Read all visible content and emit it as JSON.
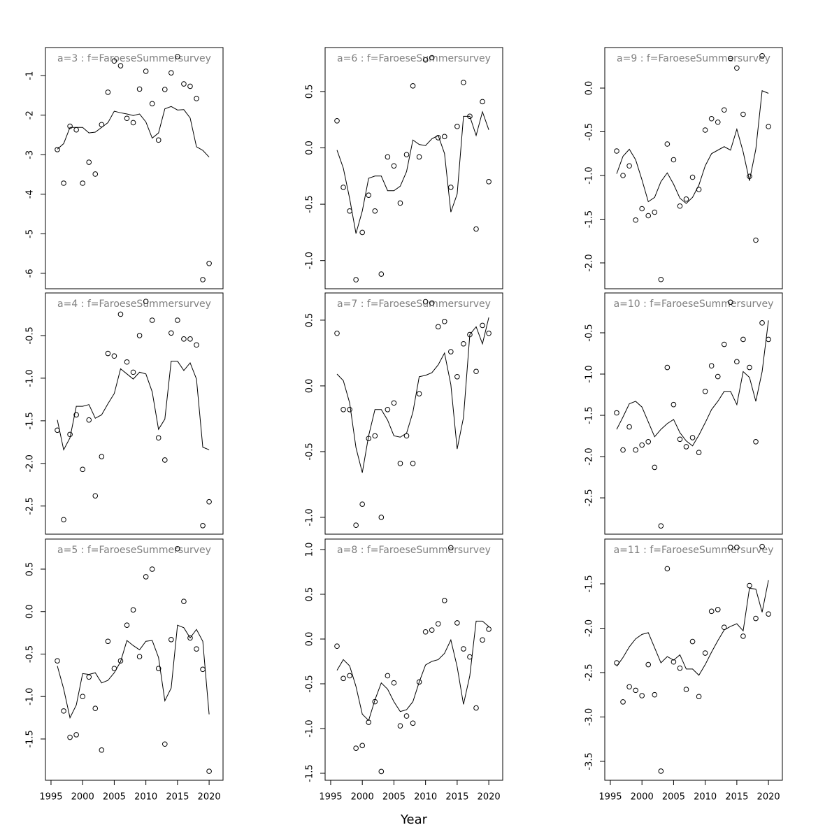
{
  "chart_data": [
    {
      "type": "line",
      "title": "a=3  :  f=FaroeseSummersurvey",
      "x": [
        1996,
        1997,
        1998,
        1999,
        2000,
        2001,
        2002,
        2003,
        2004,
        2005,
        2006,
        2007,
        2008,
        2009,
        2010,
        2011,
        2012,
        2013,
        2014,
        2015,
        2016,
        2017,
        2018,
        2019,
        2020
      ],
      "xlim": [
        1994.12,
        2022.2
      ],
      "ylim": [
        -6.39,
        -0.29
      ],
      "yticks": [
        -6,
        -5,
        -4,
        -3,
        -2,
        -1
      ],
      "series": [
        {
          "style": "points",
          "color": "#000000",
          "values": [
            -2.87,
            -3.72,
            -2.28,
            -2.37,
            -3.72,
            -3.19,
            -3.49,
            -2.24,
            -1.42,
            -0.63,
            -0.75,
            -2.08,
            -2.19,
            -1.34,
            -0.89,
            -1.71,
            -2.63,
            -1.35,
            -0.93,
            -0.52,
            -1.21,
            -1.27,
            -1.58,
            -6.16,
            -5.75
          ]
        },
        {
          "style": "line",
          "color": "#000000",
          "values": [
            -2.86,
            -2.72,
            -2.31,
            -2.31,
            -2.31,
            -2.45,
            -2.43,
            -2.31,
            -2.19,
            -1.9,
            -1.94,
            -1.97,
            -2.01,
            -1.97,
            -2.17,
            -2.58,
            -2.45,
            -1.84,
            -1.78,
            -1.87,
            -1.86,
            -2.07,
            -2.8,
            -2.89,
            -3.06
          ]
        }
      ]
    },
    {
      "type": "line",
      "title": "a=4  :  f=FaroeseSummersurvey",
      "x": [
        1996,
        1997,
        1998,
        1999,
        2000,
        2001,
        2002,
        2003,
        2004,
        2005,
        2006,
        2007,
        2008,
        2009,
        2010,
        2011,
        2012,
        2013,
        2014,
        2015,
        2016,
        2017,
        2018,
        2019,
        2020
      ],
      "xlim": [
        1994.12,
        2022.2
      ],
      "ylim": [
        -2.83,
        0.0
      ],
      "yticks": [
        -2.5,
        {
          "value": -2,
          "label": "-2.0"
        },
        -1.5,
        {
          "value": -1,
          "label": "-1.0"
        },
        -0.5
      ],
      "series": [
        {
          "style": "points",
          "color": "#000000",
          "values": [
            -1.61,
            -2.66,
            -1.66,
            -1.43,
            -2.07,
            -1.49,
            -2.38,
            -1.92,
            -0.71,
            -0.74,
            -0.25,
            -0.81,
            -0.93,
            -0.5,
            -0.1,
            -0.32,
            -1.7,
            -1.96,
            -0.47,
            -0.32,
            -0.54,
            -0.54,
            -0.61,
            -2.73,
            -2.45
          ]
        },
        {
          "style": "line",
          "color": "#000000",
          "values": [
            -1.49,
            -1.84,
            -1.7,
            -1.33,
            -1.33,
            -1.31,
            -1.47,
            -1.43,
            -1.3,
            -1.18,
            -0.89,
            -0.95,
            -1.01,
            -0.93,
            -0.95,
            -1.16,
            -1.6,
            -1.48,
            -0.8,
            -0.8,
            -0.91,
            -0.82,
            -1.01,
            -1.81,
            -1.84
          ]
        }
      ]
    },
    {
      "type": "line",
      "title": "a=5  :  f=FaroeseSummersurvey",
      "x": [
        1996,
        1997,
        1998,
        1999,
        2000,
        2001,
        2002,
        2003,
        2004,
        2005,
        2006,
        2007,
        2008,
        2009,
        2010,
        2011,
        2012,
        2013,
        2014,
        2015,
        2016,
        2017,
        2018,
        2019,
        2020
      ],
      "xlim": [
        1994.12,
        2022.2
      ],
      "ylim": [
        -1.986,
        0.854
      ],
      "yticks": [
        -1.5,
        {
          "value": -1,
          "label": "-1.0"
        },
        -0.5,
        {
          "value": 0,
          "label": "0.0"
        },
        0.5
      ],
      "xticks": [
        1995,
        2000,
        2005,
        2010,
        2015,
        2020
      ],
      "series": [
        {
          "style": "points",
          "color": "#000000",
          "values": [
            -0.58,
            -1.17,
            -1.48,
            -1.45,
            -1.0,
            -0.77,
            -1.14,
            -1.63,
            -0.35,
            -0.67,
            -0.58,
            -0.16,
            0.02,
            -0.53,
            0.41,
            0.5,
            -0.67,
            -1.56,
            -0.33,
            0.74,
            0.12,
            -0.31,
            -0.44,
            -0.68,
            -1.88
          ]
        },
        {
          "style": "line",
          "color": "#000000",
          "values": [
            -0.64,
            -0.91,
            -1.25,
            -1.1,
            -0.73,
            -0.74,
            -0.72,
            -0.84,
            -0.81,
            -0.72,
            -0.59,
            -0.34,
            -0.4,
            -0.45,
            -0.35,
            -0.34,
            -0.54,
            -1.05,
            -0.9,
            -0.16,
            -0.19,
            -0.31,
            -0.21,
            -0.35,
            -1.21
          ]
        }
      ]
    },
    {
      "type": "line",
      "title": "a=6  :  f=FaroeseSummersurvey",
      "x": [
        1996,
        1997,
        1998,
        1999,
        2000,
        2001,
        2002,
        2003,
        2004,
        2005,
        2006,
        2007,
        2008,
        2009,
        2010,
        2011,
        2012,
        2013,
        2014,
        2015,
        2016,
        2017,
        2018,
        2019,
        2020
      ],
      "xlim": [
        1994.12,
        2022.2
      ],
      "ylim": [
        -1.25,
        0.89
      ],
      "yticks": [
        {
          "value": -1,
          "label": "-1.0"
        },
        -0.5,
        {
          "value": 0,
          "label": "0.0"
        },
        0.5
      ],
      "series": [
        {
          "style": "points",
          "color": "#000000",
          "values": [
            0.24,
            -0.35,
            -0.56,
            -1.17,
            -0.75,
            -0.42,
            -0.56,
            -1.12,
            -0.08,
            -0.16,
            -0.49,
            -0.06,
            0.55,
            -0.08,
            0.78,
            0.8,
            0.09,
            0.1,
            -0.35,
            0.19,
            0.58,
            0.28,
            -0.72,
            0.41,
            -0.3
          ]
        },
        {
          "style": "line",
          "color": "#000000",
          "values": [
            -0.02,
            -0.18,
            -0.45,
            -0.76,
            -0.56,
            -0.27,
            -0.25,
            -0.25,
            -0.38,
            -0.38,
            -0.34,
            -0.21,
            0.07,
            0.03,
            0.02,
            0.08,
            0.11,
            -0.05,
            -0.57,
            -0.41,
            0.28,
            0.28,
            0.11,
            0.32,
            0.16
          ]
        }
      ]
    },
    {
      "type": "line",
      "title": "a=7  :  f=FaroeseSummersurvey",
      "x": [
        1996,
        1997,
        1998,
        1999,
        2000,
        2001,
        2002,
        2003,
        2004,
        2005,
        2006,
        2007,
        2008,
        2009,
        2010,
        2011,
        2012,
        2013,
        2014,
        2015,
        2016,
        2017,
        2018,
        2019,
        2020
      ],
      "xlim": [
        1994.12,
        2022.2
      ],
      "ylim": [
        -1.128,
        0.707
      ],
      "yticks": [
        {
          "value": -1,
          "label": "-1.0"
        },
        -0.5,
        {
          "value": 0,
          "label": "0.0"
        },
        0.5
      ],
      "series": [
        {
          "style": "points",
          "color": "#000000",
          "values": [
            0.4,
            -0.18,
            -0.18,
            -1.06,
            -0.9,
            -0.4,
            -0.38,
            -1.0,
            -0.18,
            -0.13,
            -0.59,
            -0.38,
            -0.59,
            -0.06,
            0.64,
            0.63,
            0.45,
            0.49,
            0.26,
            0.07,
            0.32,
            0.39,
            0.11,
            0.46,
            0.4
          ]
        },
        {
          "style": "line",
          "color": "#000000",
          "values": [
            0.09,
            0.04,
            -0.13,
            -0.47,
            -0.66,
            -0.38,
            -0.18,
            -0.18,
            -0.26,
            -0.38,
            -0.39,
            -0.36,
            -0.2,
            0.07,
            0.08,
            0.1,
            0.16,
            0.25,
            0.01,
            -0.48,
            -0.24,
            0.39,
            0.45,
            0.32,
            0.52
          ]
        }
      ]
    },
    {
      "type": "line",
      "title": "a=8  :  f=FaroeseSummersurvey",
      "xlabel": "Year",
      "x": [
        1996,
        1997,
        1998,
        1999,
        2000,
        2001,
        2002,
        2003,
        2004,
        2005,
        2006,
        2007,
        2008,
        2009,
        2010,
        2011,
        2012,
        2013,
        2014,
        2015,
        2016,
        2017,
        2018,
        2019,
        2020
      ],
      "xlim": [
        1994.12,
        2022.2
      ],
      "ylim": [
        -1.578,
        1.117
      ],
      "yticks": [
        -1.5,
        {
          "value": -1,
          "label": "-1.0"
        },
        -0.5,
        {
          "value": 0,
          "label": "0.0"
        },
        0.5,
        {
          "value": 1,
          "label": "1.0"
        }
      ],
      "xticks": [
        1995,
        2000,
        2005,
        2010,
        2015,
        2020
      ],
      "series": [
        {
          "style": "points",
          "color": "#000000",
          "values": [
            -0.08,
            -0.44,
            -0.41,
            -1.22,
            -1.19,
            -0.93,
            -0.7,
            -1.48,
            -0.41,
            -0.49,
            -0.97,
            -0.86,
            -0.94,
            -0.48,
            0.08,
            0.1,
            0.17,
            0.43,
            1.02,
            0.18,
            -0.11,
            -0.2,
            -0.77,
            -0.01,
            0.11
          ]
        },
        {
          "style": "line",
          "color": "#000000",
          "values": [
            -0.35,
            -0.23,
            -0.3,
            -0.53,
            -0.84,
            -0.91,
            -0.68,
            -0.49,
            -0.56,
            -0.7,
            -0.81,
            -0.79,
            -0.7,
            -0.48,
            -0.29,
            -0.25,
            -0.23,
            -0.16,
            -0.01,
            -0.31,
            -0.73,
            -0.41,
            0.2,
            0.2,
            0.14
          ]
        }
      ]
    },
    {
      "type": "line",
      "title": "a=9  :  f=FaroeseSummersurvey",
      "x": [
        1996,
        1997,
        1998,
        1999,
        2000,
        2001,
        2002,
        2003,
        2004,
        2005,
        2006,
        2007,
        2008,
        2009,
        2010,
        2011,
        2012,
        2013,
        2014,
        2015,
        2016,
        2017,
        2018,
        2019,
        2020
      ],
      "xlim": [
        1994.12,
        2022.2
      ],
      "ylim": [
        -2.296,
        0.464
      ],
      "yticks": [
        {
          "value": -2,
          "label": "-2.0"
        },
        -1.5,
        {
          "value": -1,
          "label": "-1.0"
        },
        -0.5,
        {
          "value": 0,
          "label": "0.0"
        }
      ],
      "series": [
        {
          "style": "points",
          "color": "#000000",
          "values": [
            -0.72,
            -1.0,
            -0.89,
            -1.51,
            -1.38,
            -1.46,
            -1.42,
            -2.19,
            -0.64,
            -0.82,
            -1.35,
            -1.27,
            -1.02,
            -1.16,
            -0.48,
            -0.35,
            -0.39,
            -0.25,
            0.34,
            0.23,
            -0.3,
            -1.01,
            -1.74,
            0.37,
            -0.44
          ]
        },
        {
          "style": "line",
          "color": "#000000",
          "values": [
            -0.98,
            -0.78,
            -0.7,
            -0.82,
            -1.05,
            -1.3,
            -1.25,
            -1.07,
            -0.97,
            -1.1,
            -1.26,
            -1.32,
            -1.25,
            -1.11,
            -0.89,
            -0.75,
            -0.71,
            -0.67,
            -0.71,
            -0.47,
            -0.73,
            -1.06,
            -0.7,
            -0.03,
            -0.06
          ]
        }
      ]
    },
    {
      "type": "line",
      "title": "a=10  :  f=FaroeseSummersurvey",
      "x": [
        1996,
        1997,
        1998,
        1999,
        2000,
        2001,
        2002,
        2003,
        2004,
        2005,
        2006,
        2007,
        2008,
        2009,
        2010,
        2011,
        2012,
        2013,
        2014,
        2015,
        2016,
        2017,
        2018,
        2019,
        2020
      ],
      "xlim": [
        1994.12,
        2022.2
      ],
      "ylim": [
        -2.94,
        -0.017
      ],
      "yticks": [
        -2.5,
        {
          "value": -2,
          "label": "-2.0"
        },
        -1.5,
        {
          "value": -1,
          "label": "-1.0"
        },
        -0.5
      ],
      "series": [
        {
          "style": "points",
          "color": "#000000",
          "values": [
            -1.47,
            -1.92,
            -1.64,
            -1.92,
            -1.86,
            -1.82,
            -2.13,
            -2.84,
            -0.92,
            -1.37,
            -1.79,
            -1.88,
            -1.77,
            -1.95,
            -1.21,
            -0.9,
            -1.03,
            -0.64,
            -0.13,
            -0.85,
            -0.58,
            -0.92,
            -1.82,
            -0.38,
            -0.58
          ]
        },
        {
          "style": "line",
          "color": "#000000",
          "values": [
            -1.67,
            -1.52,
            -1.36,
            -1.33,
            -1.4,
            -1.58,
            -1.76,
            -1.67,
            -1.6,
            -1.55,
            -1.71,
            -1.81,
            -1.87,
            -1.74,
            -1.59,
            -1.43,
            -1.33,
            -1.21,
            -1.21,
            -1.37,
            -0.97,
            -1.04,
            -1.33,
            -0.97,
            -0.35
          ]
        }
      ]
    },
    {
      "type": "line",
      "title": "a=11  :  f=FaroeseSummersurvey",
      "x": [
        1996,
        1997,
        1998,
        1999,
        2000,
        2001,
        2002,
        2003,
        2004,
        2005,
        2006,
        2007,
        2008,
        2009,
        2010,
        2011,
        2012,
        2013,
        2014,
        2015,
        2016,
        2017,
        2018,
        2019,
        2020
      ],
      "xlim": [
        1994.12,
        2022.2
      ],
      "ylim": [
        -3.713,
        -0.996
      ],
      "yticks": [
        -3.5,
        {
          "value": -3,
          "label": "-3.0"
        },
        -2.5,
        {
          "value": -2,
          "label": "-2.0"
        },
        -1.5
      ],
      "xticks": [
        1995,
        2000,
        2005,
        2010,
        2015,
        2020
      ],
      "series": [
        {
          "style": "points",
          "color": "#000000",
          "values": [
            -2.39,
            -2.83,
            -2.66,
            -2.7,
            -2.76,
            -2.41,
            -2.75,
            -3.61,
            -1.33,
            -2.38,
            -2.45,
            -2.69,
            -2.15,
            -2.77,
            -2.28,
            -1.81,
            -1.79,
            -1.99,
            -1.09,
            -1.09,
            -2.09,
            -1.52,
            -1.89,
            -1.08,
            -1.84
          ]
        },
        {
          "style": "line",
          "color": "#000000",
          "values": [
            -2.43,
            -2.33,
            -2.21,
            -2.12,
            -2.07,
            -2.05,
            -2.22,
            -2.39,
            -2.32,
            -2.36,
            -2.3,
            -2.46,
            -2.46,
            -2.53,
            -2.41,
            -2.27,
            -2.14,
            -2.02,
            -1.98,
            -1.95,
            -2.03,
            -1.55,
            -1.56,
            -1.82,
            -1.46
          ]
        }
      ]
    }
  ]
}
